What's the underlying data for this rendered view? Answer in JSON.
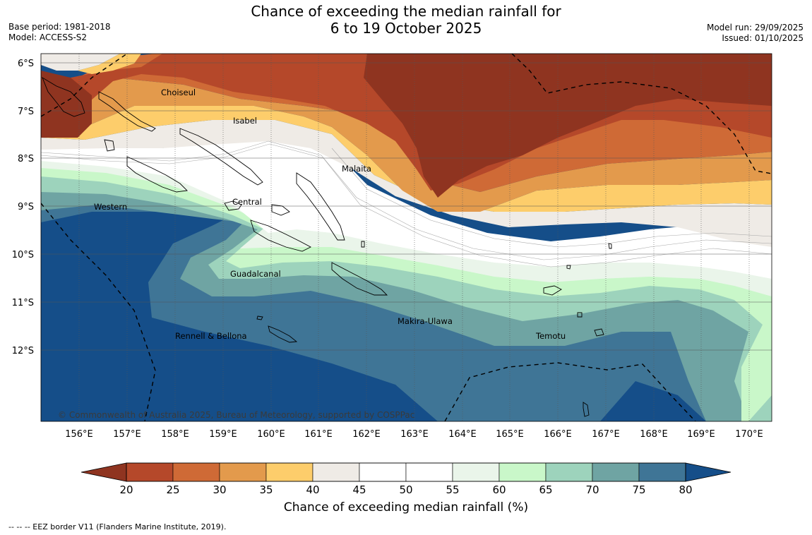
{
  "header": {
    "title_line1": "Chance of exceeding the median rainfall for",
    "title_line2": "6 to 19 October 2025",
    "base_period": "Base period: 1981-2018",
    "model": "Model: ACCESS-S2",
    "model_run": "Model run: 29/09/2025",
    "issued": "Issued: 01/10/2025"
  },
  "map": {
    "lat_labels": [
      "6°S",
      "7°S",
      "8°S",
      "9°S",
      "10°S",
      "11°S",
      "12°S"
    ],
    "lon_labels": [
      "156°E",
      "157°E",
      "158°E",
      "159°E",
      "160°E",
      "161°E",
      "162°E",
      "163°E",
      "164°E",
      "165°E",
      "166°E",
      "167°E",
      "168°E",
      "169°E",
      "170°E"
    ],
    "regions": [
      "Choiseul",
      "Isabel",
      "Malaita",
      "Western",
      "Central",
      "Guadalcanal",
      "Makira-Ulawa",
      "Rennell & Bellona",
      "Temotu"
    ],
    "copyright": "© Commonwealth of Australia 2025, Bureau of Meteorology, supported by COSPPac"
  },
  "colorbar": {
    "ticks": [
      "20",
      "25",
      "30",
      "35",
      "40",
      "45",
      "50",
      "55",
      "60",
      "65",
      "70",
      "75",
      "80"
    ],
    "colors": [
      "#8f3420",
      "#b5482a",
      "#cf6a36",
      "#e39a4c",
      "#fdcd6b",
      "#efebe6",
      "#ffffff",
      "#ffffff",
      "#eaf5ea",
      "#c9f7c9",
      "#9dd3bc",
      "#6fa4a3",
      "#3f7596",
      "#154e89"
    ],
    "label": "Chance of exceeding median rainfall (%)"
  },
  "footnote": "--  --  -- EEZ border V11 (Flanders Marine Institute, 2019)."
}
